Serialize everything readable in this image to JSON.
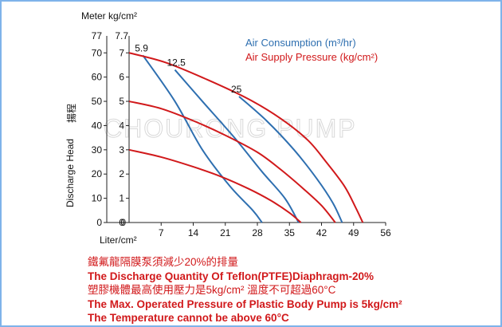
{
  "chart_data": {
    "type": "line",
    "units": {
      "meter": "Meter",
      "pressure": "kg/cm²",
      "flow": "Liter/cm²"
    },
    "ylabel": "Discharge Head",
    "ylabel_cjk": "揚程",
    "left_axis": {
      "ticks": [
        0,
        10,
        20,
        30,
        40,
        50,
        60,
        70
      ],
      "top_label": "77",
      "range": [
        0,
        77
      ]
    },
    "right_axis": {
      "ticks": [
        0,
        1,
        2,
        3,
        4,
        5,
        6,
        7
      ],
      "top_label": "7.7",
      "range": [
        0,
        7.7
      ]
    },
    "x_axis": {
      "ticks": [
        7,
        14,
        21,
        28,
        35,
        42,
        49,
        56
      ],
      "range": [
        0,
        56
      ]
    },
    "legend": {
      "air_label": "Air Consumption (m³/hr)",
      "pressure_label": "Air Supply Pressure (kg/cm²)",
      "air_color": "#2e6fb0",
      "pressure_color": "#d1191b"
    },
    "watermark": "CHOURONG PUMP",
    "series": [
      {
        "kind": "air",
        "label": "5.9",
        "points": [
          [
            3,
            69
          ],
          [
            10,
            50
          ],
          [
            16,
            30
          ],
          [
            22,
            15
          ],
          [
            27,
            5
          ],
          [
            29,
            0
          ]
        ]
      },
      {
        "kind": "air",
        "label": "12.5",
        "points": [
          [
            10,
            63
          ],
          [
            16,
            50
          ],
          [
            23,
            35
          ],
          [
            29,
            21
          ],
          [
            34,
            10
          ],
          [
            37,
            0
          ]
        ]
      },
      {
        "kind": "air",
        "label": "25",
        "points": [
          [
            24,
            52
          ],
          [
            30,
            42
          ],
          [
            36,
            30
          ],
          [
            41,
            18
          ],
          [
            44.5,
            8
          ],
          [
            46.5,
            0
          ]
        ]
      },
      {
        "kind": "pressure",
        "label": "7",
        "points": [
          [
            0,
            70
          ],
          [
            8,
            66
          ],
          [
            17,
            59
          ],
          [
            26,
            51
          ],
          [
            33,
            43
          ],
          [
            39,
            34
          ],
          [
            43,
            25
          ],
          [
            47,
            15
          ],
          [
            49.5,
            6
          ],
          [
            51,
            0
          ]
        ]
      },
      {
        "kind": "pressure",
        "label": "5",
        "points": [
          [
            0,
            50
          ],
          [
            7,
            47
          ],
          [
            14,
            42
          ],
          [
            21,
            36
          ],
          [
            28,
            29
          ],
          [
            33,
            22
          ],
          [
            38,
            14
          ],
          [
            42,
            7
          ],
          [
            45,
            0
          ]
        ]
      },
      {
        "kind": "pressure",
        "label": "3",
        "points": [
          [
            0,
            30
          ],
          [
            7,
            27
          ],
          [
            14,
            23
          ],
          [
            20,
            19
          ],
          [
            26,
            14
          ],
          [
            31,
            9
          ],
          [
            35,
            4
          ],
          [
            37.5,
            0
          ]
        ]
      }
    ]
  },
  "notes": {
    "line1": "鐵氟龍隔膜泵須減少20%的排量",
    "line2": "The Discharge Quantity Of Teflon(PTFE)Diaphragm-20%",
    "line3": "塑膠機體最高使用壓力是5kg/cm² 溫度不可超過60°C",
    "line4": "The Max. Operated Pressure of Plastic Body Pump is 5kg/cm²",
    "line5": "The Temperature cannot be above 60°C"
  }
}
